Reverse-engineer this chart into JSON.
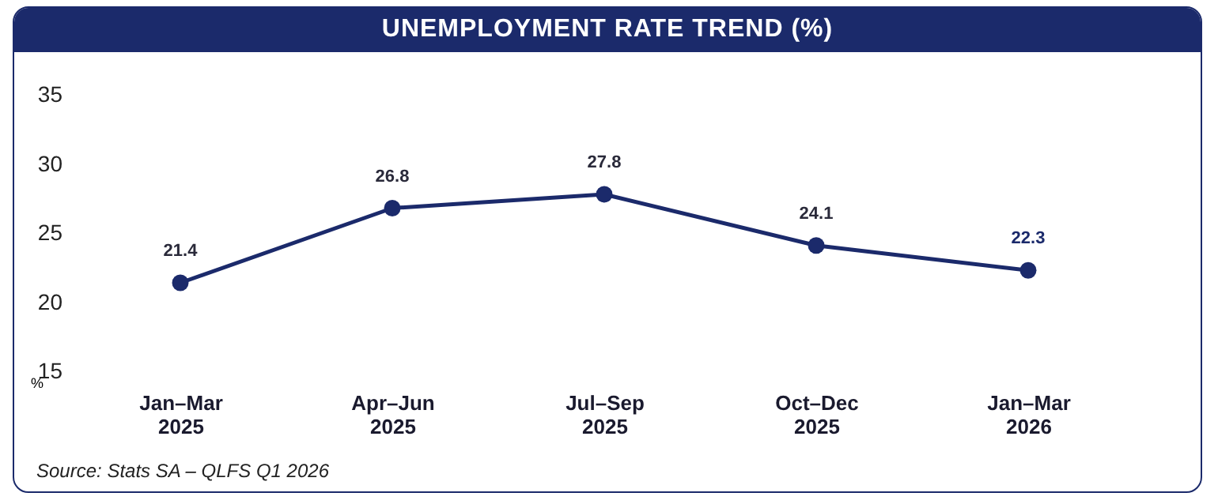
{
  "chart_data": {
    "type": "line",
    "title": "UNEMPLOYMENT RATE TREND (%)",
    "ylabel": "%",
    "categories": [
      "Jan–Mar 2025",
      "Apr–Jun 2025",
      "Jul–Sep 2025",
      "Oct–Dec 2025",
      "Jan–Mar 2026"
    ],
    "series": [
      {
        "color": "#1b2a6b",
        "values": [
          21.4,
          26.8,
          27.8,
          24.1,
          22.3
        ]
      }
    ],
    "ylim": [
      15,
      35
    ],
    "yticks": [
      15,
      20,
      25,
      30,
      35
    ],
    "marker": "circle",
    "data_labels": true,
    "annotations": [
      "Source: Stats SA – QLFS Q1 2026"
    ]
  }
}
